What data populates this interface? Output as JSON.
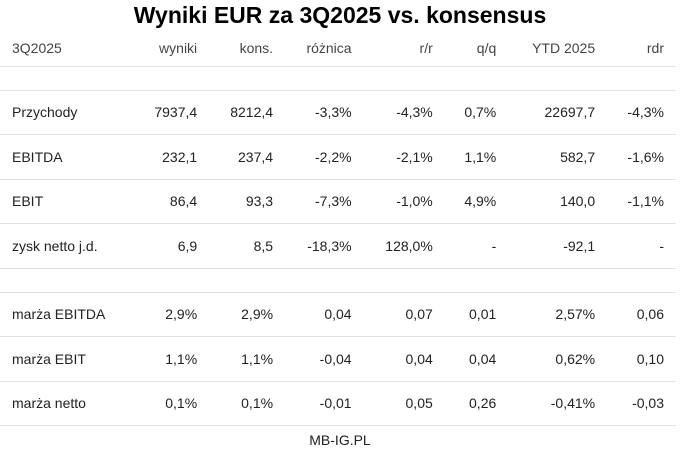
{
  "title": "Wyniki EUR za 3Q2025 vs. konsensus",
  "header": [
    "3Q2025",
    "wyniki",
    "kons.",
    "różnica",
    "r/r",
    "q/q",
    "YTD 2025",
    "rdr"
  ],
  "rows_a": [
    [
      "Przychody",
      "7937,4",
      "8212,4",
      "-3,3%",
      "-4,3%",
      "0,7%",
      "22697,7",
      "-4,3%"
    ],
    [
      "EBITDA",
      "232,1",
      "237,4",
      "-2,2%",
      "-2,1%",
      "1,1%",
      "582,7",
      "-1,6%"
    ],
    [
      "EBIT",
      "86,4",
      "93,3",
      "-7,3%",
      "-1,0%",
      "4,9%",
      "140,0",
      "-1,1%"
    ],
    [
      "zysk netto j.d.",
      "6,9",
      "8,5",
      "-18,3%",
      "128,0%",
      "-",
      "-92,1",
      "-"
    ]
  ],
  "rows_b": [
    [
      "marża EBITDA",
      "2,9%",
      "2,9%",
      "0,04",
      "0,07",
      "0,01",
      "2,57%",
      "0,06"
    ],
    [
      "marża EBIT",
      "1,1%",
      "1,1%",
      "-0,04",
      "0,04",
      "0,04",
      "0,62%",
      "0,10"
    ],
    [
      "marża netto",
      "0,1%",
      "0,1%",
      "-0,01",
      "0,05",
      "0,26",
      "-0,41%",
      "-0,03"
    ]
  ],
  "footer": "MB-IG.PL"
}
